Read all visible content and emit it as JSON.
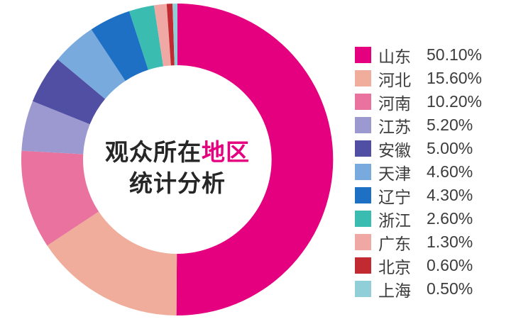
{
  "background_color": "#FFFFFF",
  "center_title": {
    "line1_black": "观众所在",
    "line1_accent": "地区",
    "line2": "统计分析",
    "accent_color": "#E4007F",
    "text_color": "#262626"
  },
  "legend_text_color": "#3C3C3C",
  "chart_data": {
    "type": "pie",
    "subtype": "donut",
    "title": "观众所在地区统计分析",
    "start_angle_deg": 0,
    "direction": "clockwise",
    "inner_radius_ratio": 0.6,
    "legend_position": "right",
    "categories": [
      "山东",
      "河北",
      "河南",
      "江苏",
      "安徽",
      "天津",
      "辽宁",
      "浙江",
      "广东",
      "北京",
      "上海"
    ],
    "values": [
      50.1,
      15.6,
      10.2,
      5.2,
      5.0,
      4.6,
      4.3,
      2.6,
      1.3,
      0.6,
      0.5
    ],
    "value_labels": [
      "50.10%",
      "15.60%",
      "10.20%",
      "5.20%",
      "5.00%",
      "4.60%",
      "4.30%",
      "2.60%",
      "1.30%",
      "0.60%",
      "0.50%"
    ],
    "colors": [
      "#E4007F",
      "#F0AD9C",
      "#E9729F",
      "#9B99D0",
      "#504FA4",
      "#78AADD",
      "#1E70C5",
      "#3ABCB0",
      "#EFA8A3",
      "#C02A30",
      "#90CFD8"
    ]
  }
}
